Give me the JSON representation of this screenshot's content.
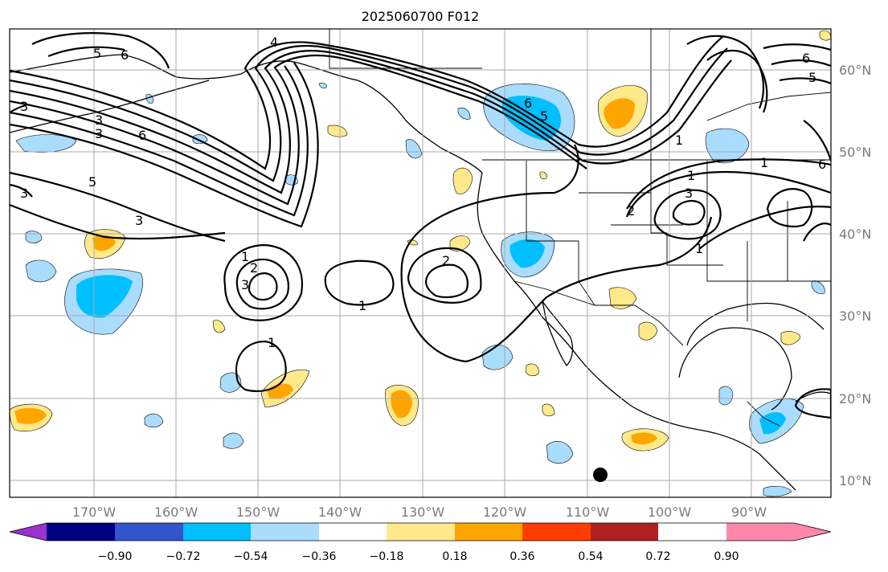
{
  "title": "2025060700 F012",
  "lon_labels": [
    "170°W",
    "160°W",
    "150°W",
    "140°W",
    "130°W",
    "120°W",
    "110°W",
    "100°W",
    "90°W"
  ],
  "lat_labels": [
    "60°N",
    "50°N",
    "40°N",
    "30°N",
    "20°N",
    "10°N"
  ],
  "colorbar": {
    "colors": [
      "#9933cc",
      "#000080",
      "#3355cc",
      "#00bfff",
      "#aadcfe",
      "#ffffff",
      "#ffe98a",
      "#ffa500",
      "#ff3d00",
      "#b02121",
      "#ff88aa"
    ],
    "tick_labels": [
      "−0.90",
      "−0.72",
      "−0.54",
      "−0.36",
      "−0.18",
      "0.18",
      "0.36",
      "0.54",
      "0.72",
      "0.90"
    ]
  },
  "contour_labels": [
    "1",
    "1",
    "1",
    "1",
    "1",
    "1",
    "1",
    "2",
    "2",
    "2",
    "3",
    "3",
    "3",
    "3",
    "3",
    "3",
    "3",
    "4",
    "5",
    "5",
    "5",
    "5",
    "6",
    "6",
    "6",
    "6",
    "6"
  ],
  "colors": {
    "positive_light": "#ffe98a",
    "positive_mid": "#ffa500",
    "negative_light": "#aadcfe",
    "negative_mid": "#00bfff",
    "gridline": "#a9a9a9",
    "axis_label": "#7a7a7a"
  }
}
